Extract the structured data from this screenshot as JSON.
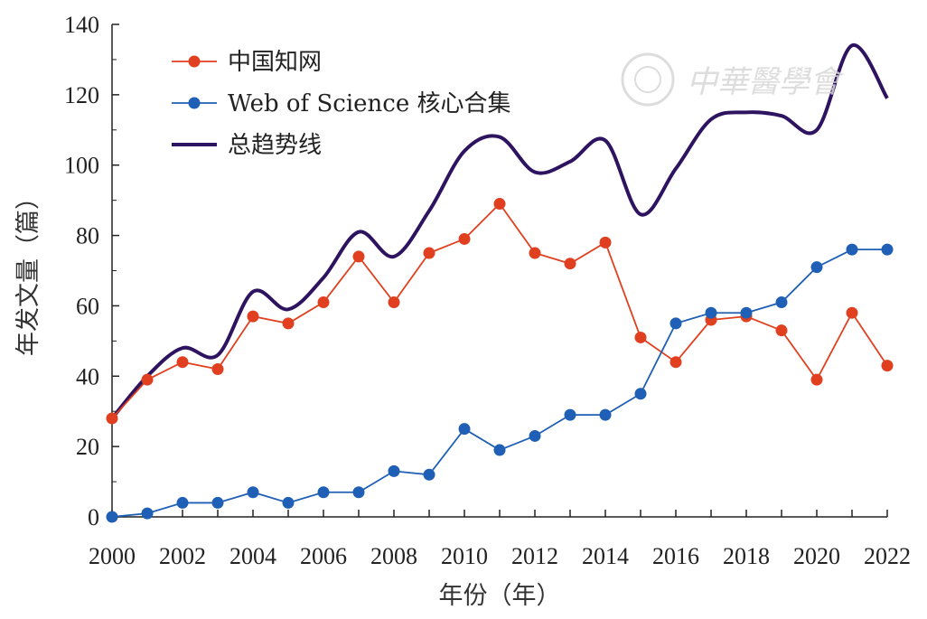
{
  "chart_data": {
    "type": "line",
    "x": [
      2000,
      2001,
      2002,
      2003,
      2004,
      2005,
      2006,
      2007,
      2008,
      2009,
      2010,
      2011,
      2012,
      2013,
      2014,
      2015,
      2016,
      2017,
      2018,
      2019,
      2020,
      2021,
      2022
    ],
    "x_tick_labels": [
      "2000",
      "2002",
      "2004",
      "2006",
      "2008",
      "2010",
      "2012",
      "2014",
      "2016",
      "2018",
      "2020",
      "2022"
    ],
    "y_tick_labels": [
      "0",
      "20",
      "40",
      "60",
      "80",
      "100",
      "120",
      "140"
    ],
    "xlim": [
      2000,
      2022
    ],
    "ylim": [
      0,
      140
    ],
    "xlabel": "年份（年）",
    "ylabel": "年发文量（篇）",
    "legend_position": "top-left",
    "grid": false,
    "series": [
      {
        "name": "中国知网",
        "color": "#e0401f",
        "marker": "circle",
        "values": [
          28,
          39,
          44,
          42,
          57,
          55,
          61,
          74,
          61,
          75,
          79,
          89,
          75,
          72,
          78,
          51,
          44,
          56,
          57,
          53,
          39,
          58,
          43
        ]
      },
      {
        "name": "Web of Science 核心合集",
        "color": "#1f5fb5",
        "marker": "circle",
        "values": [
          0,
          1,
          4,
          4,
          7,
          4,
          7,
          7,
          13,
          12,
          25,
          19,
          23,
          29,
          29,
          35,
          55,
          58,
          58,
          61,
          71,
          76,
          76
        ]
      },
      {
        "name": "总趋势线",
        "color": "#2e1460",
        "marker": "none",
        "smooth": true,
        "values": [
          28,
          40,
          48,
          46,
          64,
          59,
          68,
          81,
          74,
          87,
          104,
          108,
          98,
          101,
          107,
          86,
          99,
          113,
          115,
          114,
          110,
          134,
          119
        ]
      }
    ]
  },
  "watermark": {
    "text": "中華醫學會"
  }
}
